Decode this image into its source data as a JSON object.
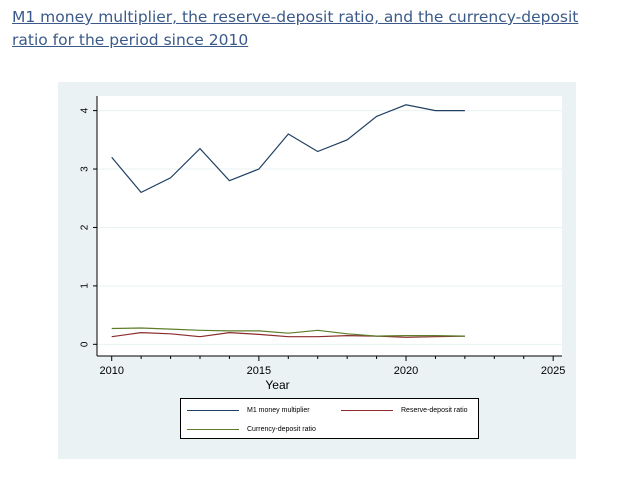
{
  "page": {
    "title": "M1 money multiplier, the reserve-deposit ratio, and the currency-deposit ratio for the period since 2010"
  },
  "chart_data": {
    "type": "line",
    "title": "",
    "xlabel": "Year",
    "ylabel": "",
    "xlim": [
      2009.5,
      2025.3
    ],
    "ylim": [
      -0.2,
      4.25
    ],
    "x_ticks": [
      2010,
      2015,
      2020,
      2025
    ],
    "y_ticks": [
      0,
      1,
      2,
      3,
      4
    ],
    "grid": true,
    "legend_position": "bottom",
    "x": [
      2010,
      2011,
      2012,
      2013,
      2014,
      2015,
      2016,
      2017,
      2018,
      2019,
      2020,
      2021,
      2022
    ],
    "series": [
      {
        "name": "M1 money multiplier",
        "color": "#1f3f63",
        "values": [
          3.2,
          2.6,
          2.85,
          3.35,
          2.8,
          3.0,
          3.6,
          3.3,
          3.5,
          3.9,
          4.1,
          4.0,
          4.0
        ]
      },
      {
        "name": "Reserve-deposit ratio",
        "color": "#8b2b2b",
        "values": [
          0.13,
          0.2,
          0.18,
          0.13,
          0.2,
          0.17,
          0.13,
          0.13,
          0.15,
          0.14,
          0.12,
          0.13,
          0.14
        ]
      },
      {
        "name": "Currency-deposit ratio",
        "color": "#5e7d2b",
        "values": [
          0.27,
          0.28,
          0.26,
          0.24,
          0.23,
          0.23,
          0.19,
          0.24,
          0.18,
          0.14,
          0.15,
          0.15,
          0.14
        ]
      }
    ]
  }
}
